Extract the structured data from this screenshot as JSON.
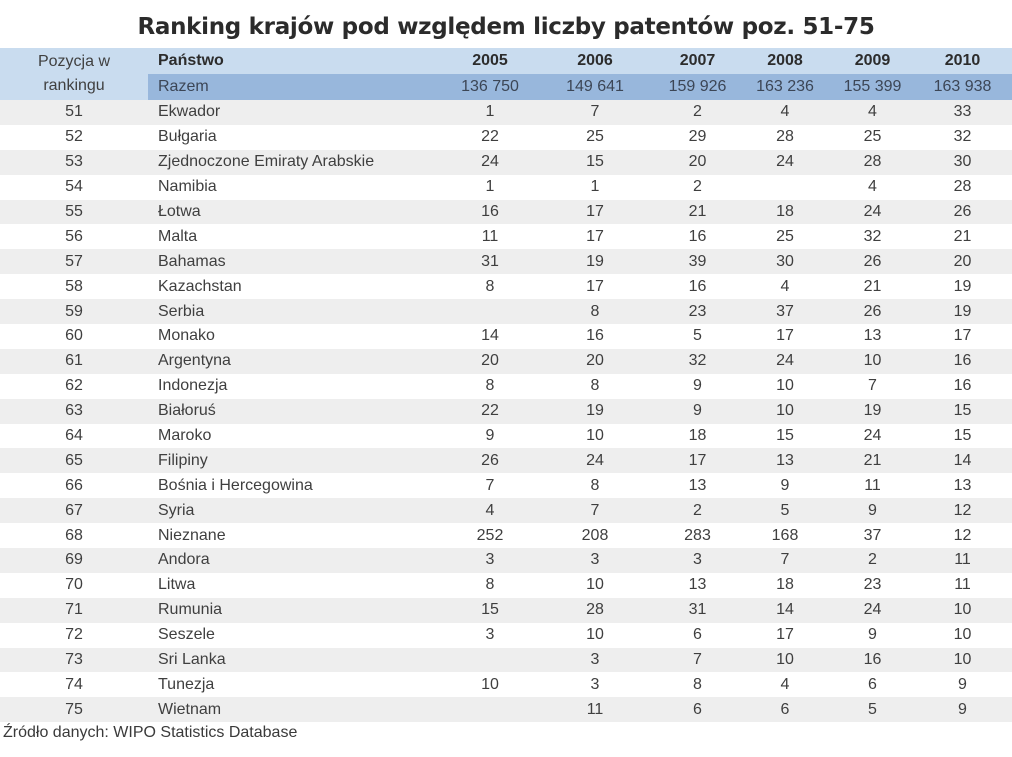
{
  "title": "Ranking krajów pod względem liczby patentów poz. 51-75",
  "header": {
    "position_label_line1": "Pozycja w",
    "position_label_line2": "rankingu",
    "country_label": "Państwo",
    "years": [
      "2005",
      "2006",
      "2007",
      "2008",
      "2009",
      "2010"
    ],
    "total_label": "Razem",
    "totals": [
      "136 750",
      "149 641",
      "159 926",
      "163 236",
      "155 399",
      "163 938"
    ]
  },
  "colors": {
    "header_bg": "#c9dcef",
    "total_row_bg": "#98b7dc",
    "row_odd_bg": "#eeeeee",
    "row_even_bg": "#ffffff"
  },
  "rows": [
    {
      "pos": "51",
      "country": "Ekwador",
      "v": [
        "1",
        "7",
        "2",
        "4",
        "4",
        "33"
      ]
    },
    {
      "pos": "52",
      "country": "Bułgaria",
      "v": [
        "22",
        "25",
        "29",
        "28",
        "25",
        "32"
      ]
    },
    {
      "pos": "53",
      "country": "Zjednoczone Emiraty Arabskie",
      "v": [
        "24",
        "15",
        "20",
        "24",
        "28",
        "30"
      ]
    },
    {
      "pos": "54",
      "country": "Namibia",
      "v": [
        "1",
        "1",
        "2",
        "",
        "4",
        "28"
      ]
    },
    {
      "pos": "55",
      "country": "Łotwa",
      "v": [
        "16",
        "17",
        "21",
        "18",
        "24",
        "26"
      ]
    },
    {
      "pos": "56",
      "country": "Malta",
      "v": [
        "11",
        "17",
        "16",
        "25",
        "32",
        "21"
      ]
    },
    {
      "pos": "57",
      "country": "Bahamas",
      "v": [
        "31",
        "19",
        "39",
        "30",
        "26",
        "20"
      ]
    },
    {
      "pos": "58",
      "country": "Kazachstan",
      "v": [
        "8",
        "17",
        "16",
        "4",
        "21",
        "19"
      ]
    },
    {
      "pos": "59",
      "country": "Serbia",
      "v": [
        "",
        "8",
        "23",
        "37",
        "26",
        "19"
      ]
    },
    {
      "pos": "60",
      "country": "Monako",
      "v": [
        "14",
        "16",
        "5",
        "17",
        "13",
        "17"
      ]
    },
    {
      "pos": "61",
      "country": "Argentyna",
      "v": [
        "20",
        "20",
        "32",
        "24",
        "10",
        "16"
      ]
    },
    {
      "pos": "62",
      "country": "Indonezja",
      "v": [
        "8",
        "8",
        "9",
        "10",
        "7",
        "16"
      ]
    },
    {
      "pos": "63",
      "country": "Białoruś",
      "v": [
        "22",
        "19",
        "9",
        "10",
        "19",
        "15"
      ]
    },
    {
      "pos": "64",
      "country": "Maroko",
      "v": [
        "9",
        "10",
        "18",
        "15",
        "24",
        "15"
      ]
    },
    {
      "pos": "65",
      "country": "Filipiny",
      "v": [
        "26",
        "24",
        "17",
        "13",
        "21",
        "14"
      ]
    },
    {
      "pos": "66",
      "country": "Bośnia i Hercegowina",
      "v": [
        "7",
        "8",
        "13",
        "9",
        "11",
        "13"
      ]
    },
    {
      "pos": "67",
      "country": "Syria",
      "v": [
        "4",
        "7",
        "2",
        "5",
        "9",
        "12"
      ]
    },
    {
      "pos": "68",
      "country": "Nieznane",
      "v": [
        "252",
        "208",
        "283",
        "168",
        "37",
        "12"
      ]
    },
    {
      "pos": "69",
      "country": "Andora",
      "v": [
        "3",
        "3",
        "3",
        "7",
        "2",
        "11"
      ]
    },
    {
      "pos": "70",
      "country": "Litwa",
      "v": [
        "8",
        "10",
        "13",
        "18",
        "23",
        "11"
      ]
    },
    {
      "pos": "71",
      "country": "Rumunia",
      "v": [
        "15",
        "28",
        "31",
        "14",
        "24",
        "10"
      ]
    },
    {
      "pos": "72",
      "country": "Seszele",
      "v": [
        "3",
        "10",
        "6",
        "17",
        "9",
        "10"
      ]
    },
    {
      "pos": "73",
      "country": "Sri Lanka",
      "v": [
        "",
        "3",
        "7",
        "10",
        "16",
        "10"
      ]
    },
    {
      "pos": "74",
      "country": "Tunezja",
      "v": [
        "10",
        "3",
        "8",
        "4",
        "6",
        "9"
      ]
    },
    {
      "pos": "75",
      "country": "Wietnam",
      "v": [
        "",
        "11",
        "6",
        "6",
        "5",
        "9"
      ]
    }
  ],
  "source": "Źródło danych: WIPO Statistics Database"
}
